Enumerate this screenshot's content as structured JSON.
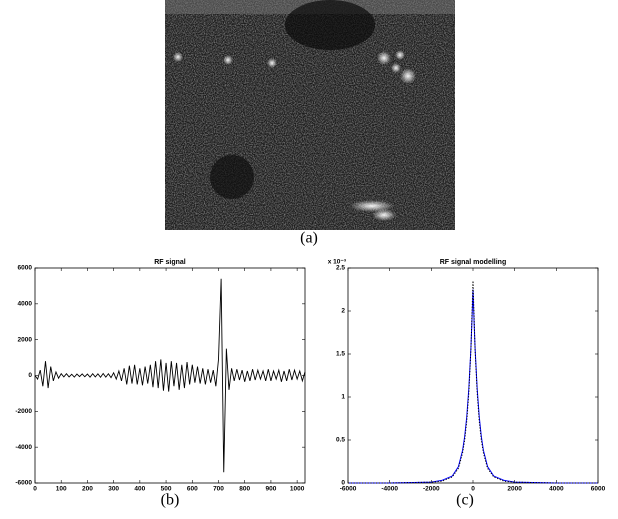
{
  "image": {
    "caption": "(a)"
  },
  "chart_data": [
    {
      "type": "line",
      "title": "RF signal",
      "caption": "(b)",
      "x": [
        0,
        10,
        20,
        30,
        40,
        50,
        60,
        70,
        80,
        90,
        100,
        110,
        120,
        130,
        140,
        150,
        160,
        170,
        180,
        190,
        200,
        210,
        220,
        230,
        240,
        250,
        260,
        270,
        280,
        290,
        300,
        310,
        320,
        330,
        340,
        350,
        360,
        370,
        380,
        390,
        400,
        410,
        420,
        430,
        440,
        450,
        460,
        470,
        480,
        490,
        500,
        510,
        520,
        530,
        540,
        550,
        560,
        570,
        580,
        590,
        600,
        610,
        620,
        630,
        640,
        650,
        660,
        670,
        680,
        690,
        700,
        710,
        720,
        730,
        740,
        750,
        760,
        770,
        780,
        790,
        800,
        810,
        820,
        830,
        840,
        850,
        860,
        870,
        880,
        890,
        900,
        910,
        920,
        930,
        940,
        950,
        960,
        970,
        980,
        990,
        1000,
        1010,
        1020,
        1030
      ],
      "values": [
        0,
        -200,
        300,
        -600,
        800,
        -700,
        500,
        -300,
        200,
        -150,
        100,
        -80,
        100,
        -80,
        70,
        -90,
        80,
        -60,
        90,
        -70,
        80,
        -90,
        100,
        -80,
        90,
        -100,
        110,
        -90,
        100,
        -120,
        150,
        -200,
        250,
        -300,
        400,
        -500,
        550,
        -450,
        600,
        -500,
        400,
        -550,
        500,
        -450,
        600,
        -650,
        800,
        -700,
        900,
        -850,
        700,
        -900,
        800,
        -600,
        700,
        -800,
        600,
        -700,
        750,
        -500,
        600,
        -400,
        500,
        -450,
        400,
        -500,
        350,
        -400,
        300,
        -600,
        900,
        5400,
        -5400,
        1500,
        -800,
        400,
        -300,
        350,
        -250,
        300,
        -350,
        250,
        -300,
        350,
        -250,
        300,
        -200,
        250,
        -300,
        350,
        -300,
        250,
        -200,
        300,
        -350,
        250,
        -300,
        350,
        -250,
        300,
        -200,
        250,
        -300,
        200
      ],
      "color": "#000000",
      "xlim": [
        0,
        1030
      ],
      "xticks": [
        0,
        100,
        200,
        300,
        400,
        500,
        600,
        700,
        800,
        900,
        1000
      ],
      "ylim": [
        -6000,
        6000
      ],
      "yticks": [
        -6000,
        -4000,
        -2000,
        0,
        2000,
        4000,
        6000
      ]
    },
    {
      "type": "line",
      "title": "RF signal modelling",
      "caption": "(c)",
      "y_multiplier": "x 10⁻³",
      "x": [
        -6000,
        -4000,
        -2000,
        -1500,
        -1000,
        -700,
        -500,
        -400,
        -300,
        -200,
        -100,
        -50,
        0,
        50,
        100,
        200,
        300,
        400,
        500,
        700,
        1000,
        1500,
        2000,
        4000,
        6000
      ],
      "series": [
        {
          "color": "#0000ff",
          "style": "solid",
          "values": [
            0,
            0,
            0.01,
            0.03,
            0.08,
            0.19,
            0.38,
            0.54,
            0.77,
            1.1,
            1.57,
            1.89,
            2.25,
            1.89,
            1.57,
            1.1,
            0.77,
            0.54,
            0.38,
            0.19,
            0.08,
            0.03,
            0.01,
            0,
            0
          ]
        },
        {
          "color": "#000000",
          "style": "dotted",
          "values": [
            0,
            0,
            0.01,
            0.02,
            0.07,
            0.17,
            0.35,
            0.5,
            0.72,
            1.05,
            1.55,
            1.95,
            2.35,
            1.95,
            1.55,
            1.05,
            0.72,
            0.5,
            0.35,
            0.17,
            0.07,
            0.02,
            0.01,
            0,
            0
          ]
        }
      ],
      "xlim": [
        -6000,
        6000
      ],
      "xticks": [
        -6000,
        -4000,
        -2000,
        0,
        2000,
        4000,
        6000
      ],
      "ylim": [
        0,
        2.5
      ],
      "yticks": [
        0,
        0.5,
        1,
        1.5,
        2,
        2.5
      ]
    }
  ]
}
